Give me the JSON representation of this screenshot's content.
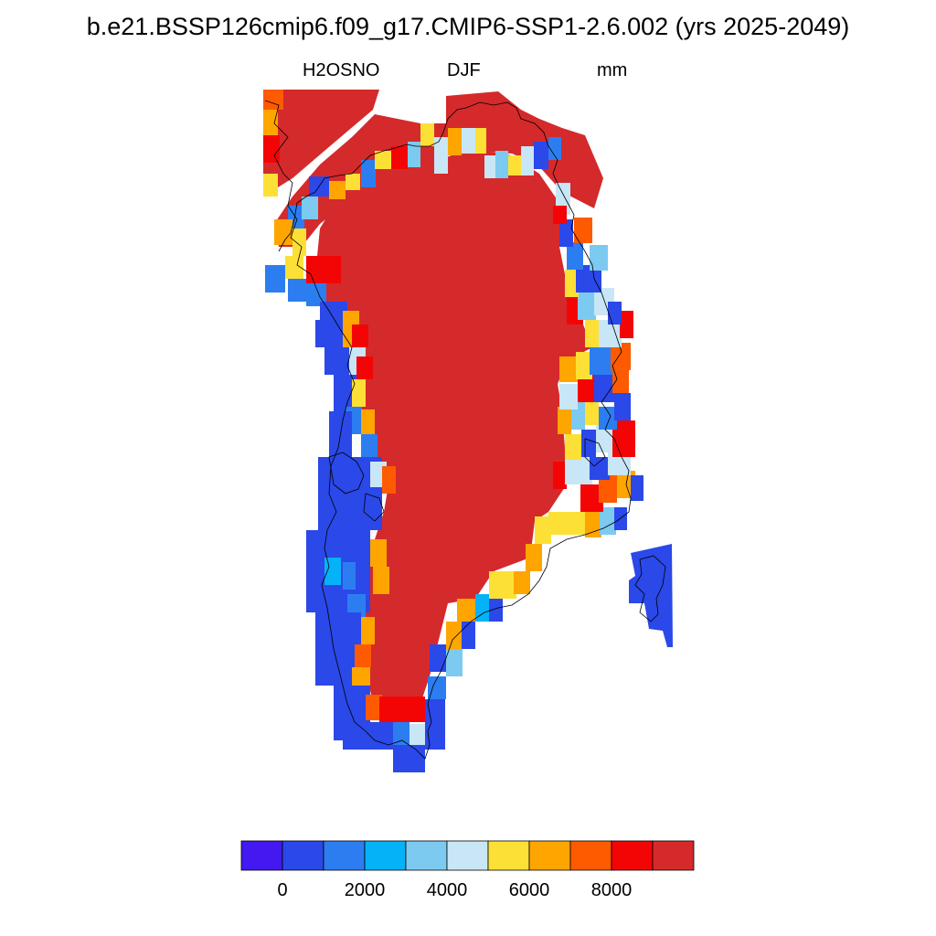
{
  "title": "b.e21.BSSP126cmip6.f09_g17.CMIP6-SSP1-2.6.002 (yrs 2025-2049)",
  "variable": "H2OSNO",
  "season": "DJF",
  "units": "mm",
  "colorbar": {
    "colors": [
      "#4418f0",
      "#2b48e8",
      "#2c7ef0",
      "#05b2f8",
      "#7ccaf0",
      "#c8e6f6",
      "#fde035",
      "#fea500",
      "#fe5a00",
      "#f40505",
      "#d42a2b"
    ],
    "tick_labels": [
      "0",
      "2000",
      "4000",
      "6000",
      "8000"
    ]
  }
}
